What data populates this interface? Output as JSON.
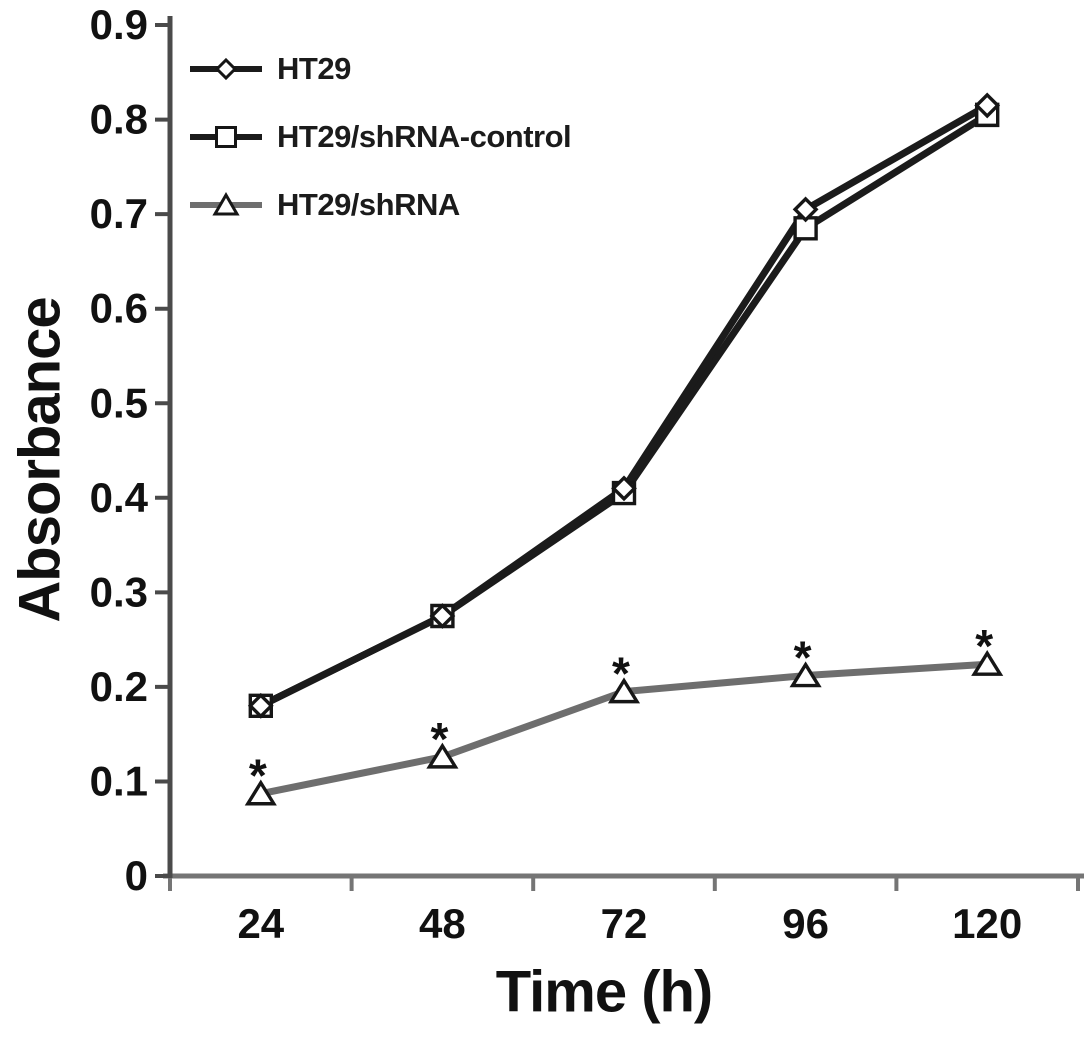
{
  "figure": {
    "background": "#ffffff",
    "text_color": "#111111"
  },
  "chart_data": {
    "type": "line",
    "title": "",
    "xlabel": "Time (h)",
    "ylabel": "Absorbance",
    "categories": [
      "24",
      "48",
      "72",
      "96",
      "120"
    ],
    "x_values": [
      24,
      48,
      72,
      96,
      120
    ],
    "ylim": [
      0,
      0.9
    ],
    "y_tick_labels": [
      "0",
      "0.1",
      "0.2",
      "0.3",
      "0.4",
      "0.5",
      "0.6",
      "0.7",
      "0.8",
      "0.9"
    ],
    "grid": false,
    "legend_position": "top-left-inside",
    "significance_marker": "*",
    "axis_colors": {
      "x_axis": "#757575",
      "y_axis": "#4a4a4a",
      "tick": "#4a4a4a",
      "text": "#111111"
    },
    "series": [
      {
        "name": "HT29",
        "marker": "diamond",
        "color": "#1b1b1b",
        "marker_fill": "#ffffff",
        "values": [
          0.18,
          0.275,
          0.41,
          0.705,
          0.815
        ],
        "point_annotations": [
          "",
          "",
          "",
          "",
          ""
        ]
      },
      {
        "name": "HT29/shRNA-control",
        "marker": "square",
        "color": "#1b1b1b",
        "marker_fill": "#ffffff",
        "values": [
          0.18,
          0.275,
          0.405,
          0.685,
          0.805
        ],
        "point_annotations": [
          "",
          "",
          "",
          "",
          ""
        ]
      },
      {
        "name": "HT29/shRNA",
        "marker": "triangle",
        "color": "#6e6e6e",
        "marker_fill": "#ffffff",
        "values": [
          0.087,
          0.126,
          0.195,
          0.212,
          0.224
        ],
        "point_annotations": [
          "*",
          "*",
          "*",
          "*",
          "*"
        ]
      }
    ]
  }
}
